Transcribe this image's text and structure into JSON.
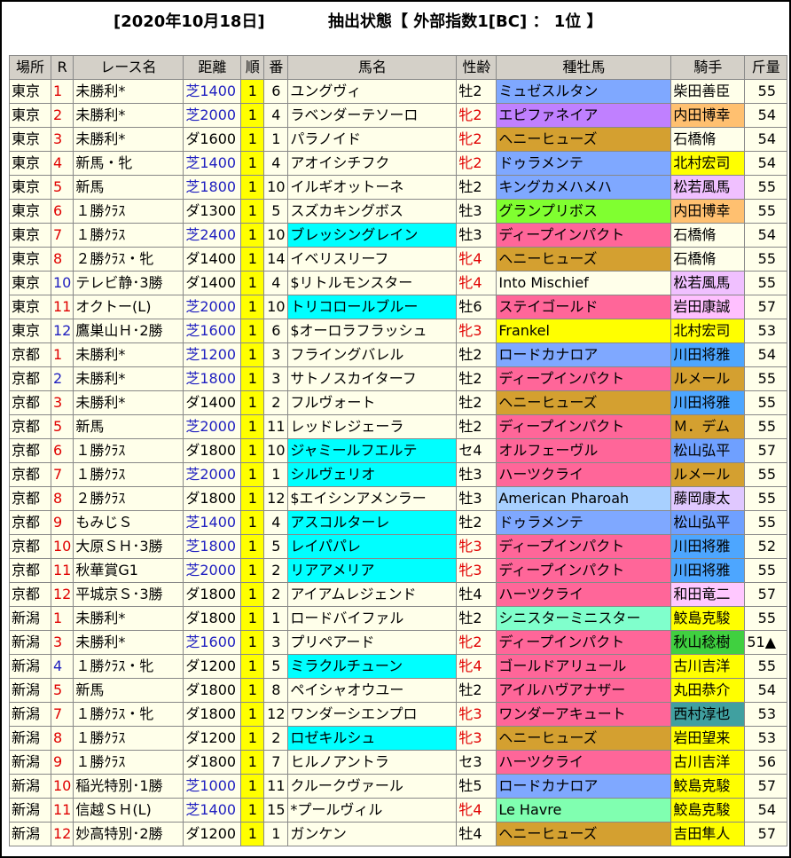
{
  "header": {
    "date": "[2020年10月18日]",
    "filter": "抽出状態【 外部指数1[BC] ： 1位 】"
  },
  "table": {
    "columns": [
      "場所",
      "R",
      "レース名",
      "距離",
      "順",
      "番",
      "馬名",
      "性齢",
      "種牡馬",
      "騎手",
      "斤量"
    ],
    "rows": [
      [
        "東京",
        "1",
        "未勝利*",
        "芝1400",
        "1",
        "6",
        "ユングヴィ",
        "牡2",
        "ミュゼスルタン",
        "柴田善臣",
        "55"
      ],
      [
        "東京",
        "2",
        "未勝利*",
        "芝2000",
        "1",
        "4",
        "ラベンダーテソーロ",
        "牝2",
        "エピファネイア",
        "内田博幸",
        "54"
      ],
      [
        "東京",
        "3",
        "未勝利*",
        "ダ1600",
        "1",
        "1",
        "パラノイド",
        "牝2",
        "ヘニーヒューズ",
        "石橋脩",
        "54"
      ],
      [
        "東京",
        "4",
        "新馬・牝",
        "芝1400",
        "1",
        "4",
        "アオイシチフク",
        "牝2",
        "ドゥラメンテ",
        "北村宏司",
        "54"
      ],
      [
        "東京",
        "5",
        "新馬",
        "芝1800",
        "1",
        "10",
        "イルギオットーネ",
        "牡2",
        "キングカメハメハ",
        "松若風馬",
        "55"
      ],
      [
        "東京",
        "6",
        "１勝ｸﾗｽ",
        "ダ1300",
        "1",
        "5",
        "スズカキングボス",
        "牡3",
        "グランプリボス",
        "内田博幸",
        "55"
      ],
      [
        "東京",
        "7",
        "１勝ｸﾗｽ",
        "芝2400",
        "1",
        "10",
        "ブレッシングレイン",
        "牡3",
        "ディープインパクト",
        "石橋脩",
        "54"
      ],
      [
        "東京",
        "8",
        "２勝ｸﾗｽ・牝",
        "ダ1400",
        "1",
        "14",
        "イベリスリーフ",
        "牝4",
        "ヘニーヒューズ",
        "石橋脩",
        "55"
      ],
      [
        "東京",
        "10",
        "テレビ静･3勝",
        "ダ1400",
        "1",
        "4",
        "$リトルモンスター",
        "牝4",
        "Into Mischief",
        "松若風馬",
        "55"
      ],
      [
        "東京",
        "11",
        "オクトー(L)",
        "芝2000",
        "1",
        "10",
        "トリコロールブルー",
        "牡6",
        "ステイゴールド",
        "岩田康誠",
        "57"
      ],
      [
        "東京",
        "12",
        "鷹巣山Ｈ･2勝",
        "芝1600",
        "1",
        "6",
        "$オーロラフラッシュ",
        "牝3",
        "Frankel",
        "北村宏司",
        "53"
      ],
      [
        "京都",
        "1",
        "未勝利*",
        "芝1200",
        "1",
        "3",
        "フライングバレル",
        "牡2",
        "ロードカナロア",
        "川田将雅",
        "54"
      ],
      [
        "京都",
        "2",
        "未勝利*",
        "芝1800",
        "1",
        "3",
        "サトノスカイターフ",
        "牡2",
        "ディープインパクト",
        "ルメール",
        "55"
      ],
      [
        "京都",
        "3",
        "未勝利*",
        "ダ1400",
        "1",
        "2",
        "フルヴォート",
        "牡2",
        "ヘニーヒューズ",
        "川田将雅",
        "55"
      ],
      [
        "京都",
        "5",
        "新馬",
        "芝2000",
        "1",
        "11",
        "レッドレジェーラ",
        "牡2",
        "ディープインパクト",
        "Ｍ．デム",
        "55"
      ],
      [
        "京都",
        "6",
        "１勝ｸﾗｽ",
        "ダ1800",
        "1",
        "10",
        "ジャミールフエルテ",
        "セ4",
        "オルフェーヴル",
        "松山弘平",
        "57"
      ],
      [
        "京都",
        "7",
        "１勝ｸﾗｽ",
        "芝2000",
        "1",
        "1",
        "シルヴェリオ",
        "牡3",
        "ハーツクライ",
        "ルメール",
        "55"
      ],
      [
        "京都",
        "8",
        "２勝ｸﾗｽ",
        "ダ1800",
        "1",
        "12",
        "$エイシンアメンラー",
        "牡3",
        "American Pharoah",
        "藤岡康太",
        "55"
      ],
      [
        "京都",
        "9",
        "もみじＳ",
        "芝1400",
        "1",
        "4",
        "アスコルターレ",
        "牡2",
        "ドゥラメンテ",
        "松山弘平",
        "55"
      ],
      [
        "京都",
        "10",
        "大原ＳＨ･3勝",
        "芝1800",
        "1",
        "5",
        "レイパパレ",
        "牝3",
        "ディープインパクト",
        "川田将雅",
        "52"
      ],
      [
        "京都",
        "11",
        "秋華賞G1",
        "芝2000",
        "1",
        "2",
        "リアアメリア",
        "牝3",
        "ディープインパクト",
        "川田将雅",
        "55"
      ],
      [
        "京都",
        "12",
        "平城京Ｓ･3勝",
        "ダ1800",
        "1",
        "2",
        "アイアムレジェンド",
        "牡4",
        "ハーツクライ",
        "和田竜二",
        "57"
      ],
      [
        "新潟",
        "1",
        "未勝利*",
        "ダ1800",
        "1",
        "1",
        "ロードバイファル",
        "牡2",
        "シニスターミニスター",
        "鮫島克駿",
        "55"
      ],
      [
        "新潟",
        "3",
        "未勝利*",
        "芝1600",
        "1",
        "3",
        "プリペアード",
        "牝2",
        "ディープインパクト",
        "秋山稔樹",
        "51▲"
      ],
      [
        "新潟",
        "4",
        "１勝ｸﾗｽ・牝",
        "ダ1200",
        "1",
        "5",
        "ミラクルチューン",
        "牝4",
        "ゴールドアリュール",
        "古川吉洋",
        "55"
      ],
      [
        "新潟",
        "5",
        "新馬",
        "ダ1800",
        "1",
        "8",
        "ペイシャオウユー",
        "牡2",
        "アイルハヴアナザー",
        "丸田恭介",
        "54"
      ],
      [
        "新潟",
        "7",
        "１勝ｸﾗｽ・牝",
        "ダ1800",
        "1",
        "12",
        "ワンダーシエンプロ",
        "牝3",
        "ワンダーアキュート",
        "西村淳也",
        "53"
      ],
      [
        "新潟",
        "8",
        "１勝ｸﾗｽ",
        "ダ1200",
        "1",
        "2",
        "ロゼキルシュ",
        "牝3",
        "ヘニーヒューズ",
        "岩田望来",
        "53"
      ],
      [
        "新潟",
        "9",
        "１勝ｸﾗｽ",
        "ダ1800",
        "1",
        "7",
        "ヒルノアントラ",
        "セ3",
        "ハーツクライ",
        "古川吉洋",
        "56"
      ],
      [
        "新潟",
        "10",
        "稲光特別･1勝",
        "芝1000",
        "1",
        "11",
        "クルークヴァール",
        "牡5",
        "ロードカナロア",
        "鮫島克駿",
        "57"
      ],
      [
        "新潟",
        "11",
        "信越ＳＨ(L)",
        "芝1400",
        "1",
        "15",
        "*プールヴィル",
        "牝4",
        "Le Havre",
        "鮫島克駿",
        "54"
      ],
      [
        "新潟",
        "12",
        "妙高特別･2勝",
        "ダ1200",
        "1",
        "1",
        "ガンケン",
        "牡4",
        "ヘニーヒューズ",
        "吉田隼人",
        "57"
      ]
    ],
    "cell_colors": [
      [
        null,
        "#7fa8ff",
        null
      ],
      [
        null,
        "#c080ff",
        "#ffc070"
      ],
      [
        null,
        "#d4a030",
        null
      ],
      [
        null,
        "#7fa8ff",
        "#ffff00"
      ],
      [
        null,
        "#7fa8ff",
        "#f0c0ff"
      ],
      [
        null,
        "#80ff30",
        "#ffc070"
      ],
      [
        "#00ffff",
        "#ff6699",
        null
      ],
      [
        null,
        "#d4a030",
        null
      ],
      [
        null,
        null,
        "#f0c0ff"
      ],
      [
        "#00ffff",
        "#ff6699",
        "#ffc0ff"
      ],
      [
        null,
        "#ffff00",
        "#ffff00"
      ],
      [
        null,
        "#7fa8ff",
        "#4da6ff"
      ],
      [
        null,
        "#ff6699",
        "#d4a030"
      ],
      [
        null,
        "#d4a030",
        "#4da6ff"
      ],
      [
        null,
        "#ff6699",
        "#d4a030"
      ],
      [
        "#00ffff",
        "#ff6699",
        "#6fa0ff"
      ],
      [
        "#00ffff",
        "#ff6699",
        "#d4a030"
      ],
      [
        null,
        "#a8d0ff",
        "#e0c8ff"
      ],
      [
        "#00ffff",
        "#7fa8ff",
        "#6fa0ff"
      ],
      [
        "#00ffff",
        "#ff6699",
        "#4da6ff"
      ],
      [
        "#00ffff",
        "#ff6699",
        "#4da6ff"
      ],
      [
        null,
        "#ff6699",
        "#ffc8ff"
      ],
      [
        null,
        "#80ffcc",
        "#ffff00"
      ],
      [
        null,
        "#ff6699",
        "#40d040"
      ],
      [
        "#00ffff",
        "#ff6699",
        "#ffff00"
      ],
      [
        null,
        "#ff6699",
        "#ffff00"
      ],
      [
        null,
        "#ff6699",
        "#40a0a0"
      ],
      [
        "#00ffff",
        "#d4a030",
        "#ffff00"
      ],
      [
        null,
        "#ff6699",
        "#ffff00"
      ],
      [
        null,
        "#7fa8ff",
        "#ffff00"
      ],
      [
        null,
        "#80ffb0",
        "#ffff00"
      ],
      [
        null,
        "#d4a030",
        "#ffff00"
      ]
    ]
  }
}
